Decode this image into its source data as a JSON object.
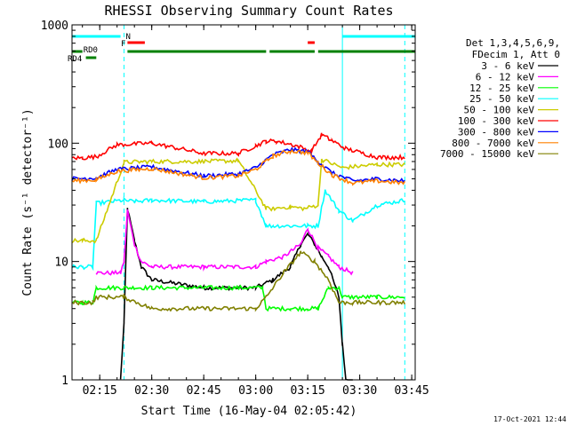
{
  "chart_data": {
    "type": "line",
    "title": "RHESSI Observing Summary Count Rates",
    "xlabel": "Start Time (16-May-04 02:05:42)",
    "ylabel": "Count Rate (s⁻¹ detector⁻¹)",
    "y_scale": "log",
    "ylim": [
      1,
      1000
    ],
    "xlim": [
      "02:07",
      "03:46"
    ],
    "x_ticks": [
      "02:15",
      "02:30",
      "02:45",
      "03:00",
      "03:15",
      "03:30",
      "03:45"
    ],
    "y_ticks": [
      "1",
      "10",
      "100",
      "1000"
    ],
    "grid": false,
    "legend_position": "right",
    "legend_header": [
      "Det 1,3,4,5,6,9,",
      "FDecim 1, Att 0"
    ],
    "footer": "17-Oct-2021 12:44",
    "series": [
      {
        "name": "3 - 6 keV",
        "color": "#000000",
        "x": [
          "02:07",
          "02:13",
          "02:14",
          "02:20",
          "02:21",
          "02:22",
          "02:23",
          "02:25",
          "02:27",
          "02:30",
          "02:45",
          "03:00",
          "03:05",
          "03:10",
          "03:13",
          "03:15",
          "03:17",
          "03:19",
          "03:21",
          "03:24",
          "03:25",
          "03:26",
          "03:28"
        ],
        "values": [
          null,
          null,
          null,
          null,
          1,
          3,
          28,
          15,
          9,
          7,
          6,
          6,
          7,
          9,
          14,
          17,
          14,
          11,
          9,
          5,
          2,
          1,
          1
        ]
      },
      {
        "name": "6 - 12 keV",
        "color": "#ff00ff",
        "x": [
          "02:07",
          "02:13",
          "02:14",
          "02:20",
          "02:21",
          "02:22",
          "02:23",
          "02:25",
          "02:27",
          "02:30",
          "02:45",
          "03:00",
          "03:03",
          "03:08",
          "03:13",
          "03:15",
          "03:18",
          "03:21",
          "03:24",
          "03:28"
        ],
        "values": [
          null,
          null,
          8,
          8,
          8,
          10,
          27,
          14,
          10,
          9,
          9,
          9,
          10,
          11,
          14,
          19,
          13,
          11,
          9,
          8
        ]
      },
      {
        "name": "12 - 25 keV",
        "color": "#00ff00",
        "x": [
          "02:07",
          "02:10",
          "02:13",
          "02:14",
          "02:22",
          "02:25",
          "02:30",
          "02:45",
          "03:02",
          "03:03",
          "03:10",
          "03:15",
          "03:18",
          "03:21",
          "03:24",
          "03:25",
          "03:35",
          "03:43"
        ],
        "values": [
          4.5,
          4.5,
          4.5,
          6,
          6,
          6,
          6,
          6,
          6,
          4,
          4,
          4,
          4,
          6,
          6,
          5,
          5,
          5
        ]
      },
      {
        "name": "25 - 50 keV",
        "color": "#00ffff",
        "x": [
          "02:07",
          "02:10",
          "02:13",
          "02:14",
          "02:22",
          "02:25",
          "02:30",
          "02:45",
          "03:00",
          "03:03",
          "03:05",
          "03:15",
          "03:18",
          "03:20",
          "03:24",
          "03:28",
          "03:35",
          "03:43"
        ],
        "values": [
          9,
          9,
          9,
          31,
          33,
          32,
          33,
          32,
          33,
          20,
          20,
          20,
          20,
          40,
          27,
          22,
          30,
          33
        ]
      },
      {
        "name": "50 - 100 keV",
        "color": "#cccc00",
        "x": [
          "02:07",
          "02:10",
          "02:14",
          "02:22",
          "02:30",
          "02:45",
          "02:55",
          "03:03",
          "03:05",
          "03:10",
          "03:14",
          "03:18",
          "03:19",
          "03:25",
          "03:35",
          "03:43"
        ],
        "values": [
          15,
          15,
          15,
          69,
          70,
          70,
          71,
          28,
          28,
          29,
          28,
          30,
          73,
          62,
          66,
          66
        ]
      },
      {
        "name": "100 - 300 keV",
        "color": "#ff0000",
        "x": [
          "02:07",
          "02:10",
          "02:14",
          "02:20",
          "02:30",
          "02:45",
          "02:55",
          "03:00",
          "03:03",
          "03:06",
          "03:12",
          "03:16",
          "03:19",
          "03:22",
          "03:26",
          "03:35",
          "03:43"
        ],
        "values": [
          75,
          75,
          77,
          97,
          100,
          82,
          82,
          95,
          104,
          104,
          95,
          85,
          118,
          105,
          90,
          76,
          76
        ]
      },
      {
        "name": "300 - 800 keV",
        "color": "#0000ff",
        "x": [
          "02:07",
          "02:14",
          "02:20",
          "02:30",
          "02:45",
          "02:55",
          "03:00",
          "03:05",
          "03:10",
          "03:15",
          "03:18",
          "03:22",
          "03:28",
          "03:35",
          "03:43"
        ],
        "values": [
          50,
          51,
          60,
          63,
          53,
          55,
          62,
          80,
          88,
          85,
          70,
          56,
          48,
          50,
          48
        ]
      },
      {
        "name": "800 - 7000 keV",
        "color": "#ff8000",
        "x": [
          "02:07",
          "02:14",
          "02:20",
          "02:30",
          "02:45",
          "02:55",
          "03:00",
          "03:05",
          "03:10",
          "03:15",
          "03:18",
          "03:22",
          "03:28",
          "03:35",
          "03:43"
        ],
        "values": [
          48,
          49,
          58,
          61,
          51,
          53,
          60,
          78,
          86,
          83,
          68,
          54,
          46,
          48,
          46
        ]
      },
      {
        "name": "7000 - 15000 keV",
        "color": "#808000",
        "x": [
          "02:07",
          "02:13",
          "02:14",
          "02:22",
          "02:30",
          "02:45",
          "03:00",
          "03:03",
          "03:08",
          "03:13",
          "03:17",
          "03:21",
          "03:24",
          "03:28",
          "03:35",
          "03:43"
        ],
        "values": [
          4.5,
          4.5,
          5,
          5,
          4,
          4,
          4,
          5,
          8,
          12,
          10,
          7,
          4.5,
          4.5,
          4.5,
          4.5
        ]
      }
    ],
    "flags": [
      {
        "label": "",
        "color": "#00ffff",
        "segments": [
          [
            "02:07",
            "02:21"
          ],
          [
            "03:25",
            "03:46"
          ]
        ]
      },
      {
        "label": "N",
        "color": "#00ffff",
        "segments": [
          [
            "02:22",
            "02:22"
          ]
        ]
      },
      {
        "label": "F",
        "color": "#ff0000",
        "segments": [
          [
            "02:23",
            "02:28"
          ],
          [
            "03:15",
            "03:17"
          ]
        ]
      },
      {
        "label": "RD0",
        "color": "#008000",
        "segments": [
          [
            "02:07",
            "02:10"
          ]
        ]
      },
      {
        "label": "RD4",
        "color": "#008000",
        "segments": [
          [
            "02:11",
            "02:14"
          ]
        ]
      },
      {
        "label": "",
        "color": "#008000",
        "segments": [
          [
            "02:23",
            "03:03"
          ],
          [
            "03:04",
            "03:17"
          ],
          [
            "03:18",
            "03:46"
          ]
        ]
      }
    ],
    "vlines_solid": [
      "02:07",
      "03:25"
    ],
    "vlines_dashed": [
      "02:22",
      "03:43"
    ]
  }
}
